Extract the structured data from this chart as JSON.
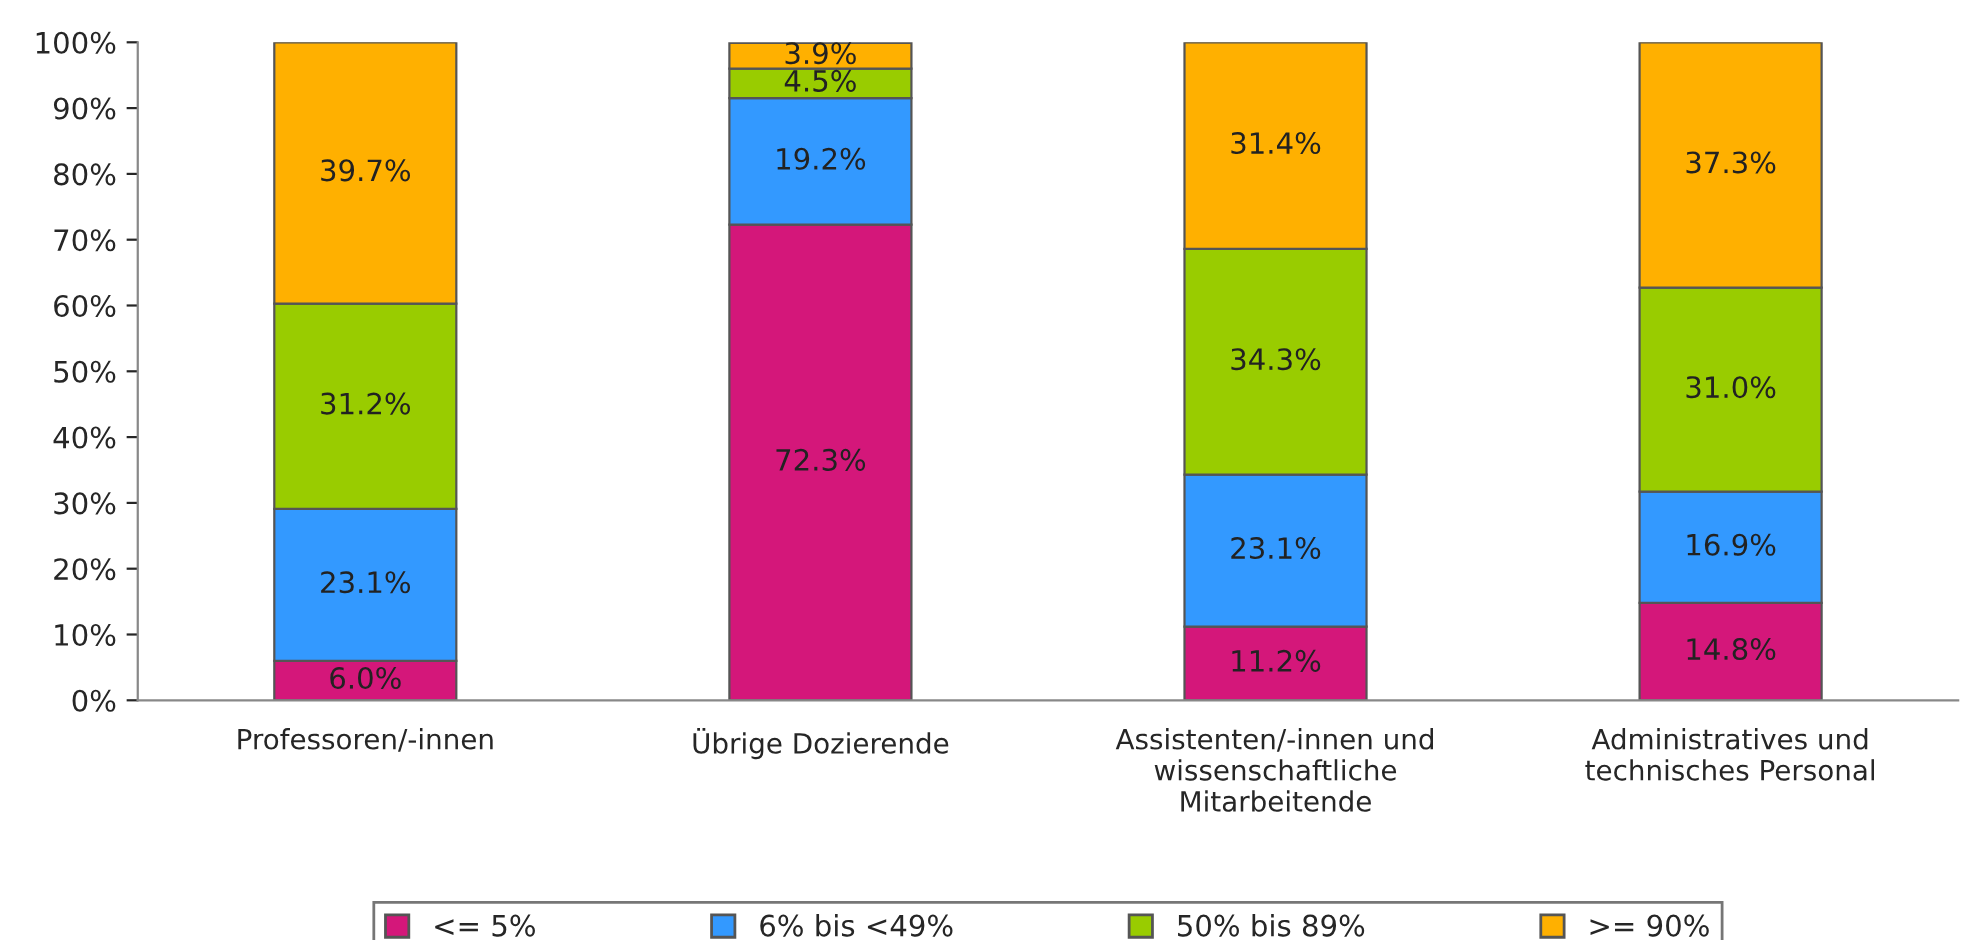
{
  "chart_data": {
    "type": "bar",
    "stacked": true,
    "categories": [
      "Professoren/-innen",
      "Übrige Dozierende",
      "Assistenten/-innen und\nwissenschaftliche\nMitarbeitende",
      "Administratives und\ntechnisches Personal"
    ],
    "series": [
      {
        "name": "<= 5%",
        "color": "#d4177a",
        "values": [
          6.0,
          72.3,
          11.2,
          14.8
        ],
        "value_labels": [
          "6.0%",
          "72.3%",
          "11.2%",
          "14.8%"
        ]
      },
      {
        "name": "6% bis <49%",
        "color": "#3399ff",
        "values": [
          23.1,
          19.2,
          23.1,
          16.9
        ],
        "value_labels": [
          "23.1%",
          "19.2%",
          "23.1%",
          "16.9%"
        ]
      },
      {
        "name": "50% bis 89%",
        "color": "#99cc00",
        "values": [
          31.2,
          4.5,
          34.3,
          31.0
        ],
        "value_labels": [
          "31.2%",
          "4.5%",
          "34.3%",
          "31.0%"
        ]
      },
      {
        "name": ">= 90%",
        "color": "#ffb000",
        "values": [
          39.7,
          3.9,
          31.4,
          37.3
        ],
        "value_labels": [
          "39.7%",
          "3.9%",
          "31.4%",
          "37.3%"
        ]
      }
    ],
    "ylim": [
      0,
      100
    ],
    "yticks": [
      {
        "value": 0,
        "label": "0%"
      },
      {
        "value": 10,
        "label": "10%"
      },
      {
        "value": 20,
        "label": "20%"
      },
      {
        "value": 30,
        "label": "30%"
      },
      {
        "value": 40,
        "label": "40%"
      },
      {
        "value": 50,
        "label": "50%"
      },
      {
        "value": 60,
        "label": "60%"
      },
      {
        "value": 70,
        "label": "70%"
      },
      {
        "value": 80,
        "label": "80%"
      },
      {
        "value": 90,
        "label": "90%"
      },
      {
        "value": 100,
        "label": "100%"
      }
    ],
    "grid": false,
    "legend": "bottom"
  }
}
